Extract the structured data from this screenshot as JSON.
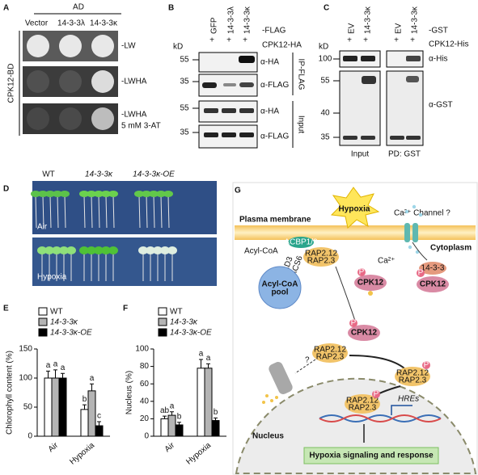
{
  "panels": {
    "A": {
      "label": "A",
      "header": "AD",
      "columns": [
        "Vector",
        "14-3-3λ",
        "14-3-3κ"
      ],
      "row_axis": "CPK12-BD",
      "rows": [
        "-LW",
        "-LWHA",
        "-LWHA"
      ],
      "row_note": "5 mM 3-AT"
    },
    "B": {
      "label": "B",
      "kd": "kD",
      "plus": "+",
      "columns": [
        "GFP",
        "14-3-3λ",
        "14-3-3κ"
      ],
      "conditions": [
        "-FLAG",
        "CPK12-HA"
      ],
      "markers": [
        55,
        35,
        55,
        35
      ],
      "antibodies": [
        "α-HA",
        "α-FLAG",
        "α-HA",
        "α-FLAG"
      ],
      "sections": [
        "IP-FLAG",
        "Input"
      ]
    },
    "C": {
      "label": "C",
      "kd": "kD",
      "plus": "+",
      "columns": [
        "EV",
        "14-3-3κ",
        "EV",
        "14-3-3κ"
      ],
      "conditions": [
        "-GST",
        "CPK12-His"
      ],
      "markers": [
        100,
        55,
        40,
        35
      ],
      "antibodies": [
        "α-His",
        "α-GST"
      ],
      "sections": [
        "Input",
        "PD: GST"
      ]
    },
    "D": {
      "label": "D",
      "genotypes": [
        "WT",
        "14-3-3κ",
        "14-3-3κ-OE"
      ],
      "conditions": [
        "Air",
        "Hypoxia"
      ]
    },
    "G": {
      "label": "G",
      "hypoxia": "Hypoxia",
      "plasma_membrane": "Plasma membrane",
      "ca_channel": "Ca²⁺ Channel ?",
      "cytoplasm": "Cytoplasm",
      "acyl_coa": "Acyl-CoA",
      "acbp": "ACBP1/2",
      "fad3": "FAD3",
      "lacs6": "LACS6",
      "rap": [
        "RAP2.12",
        "RAP2.3"
      ],
      "pool": [
        "Acyl-CoA",
        "pool"
      ],
      "ca": "Ca²⁺",
      "cpk12": "CPK12",
      "fourteen": "14-3-3",
      "phospho": "P",
      "question": "?",
      "nucleus": "Nucleus",
      "hres": "HREs",
      "response": "Hypoxia signaling and response"
    }
  },
  "chart_data": [
    {
      "type": "bar",
      "label": "E",
      "ylabel": "Chlorophyll content (%)",
      "categories": [
        "Air",
        "Hypoxia"
      ],
      "series": [
        {
          "name": "WT",
          "color": "#ffffff",
          "values": [
            100,
            46
          ],
          "errors": [
            12,
            8
          ],
          "letters": [
            "a",
            "b"
          ]
        },
        {
          "name": "14-3-3κ",
          "color": "#b4b4b4",
          "values": [
            100,
            78
          ],
          "errors": [
            14,
            12
          ],
          "letters": [
            "a",
            "a"
          ]
        },
        {
          "name": "14-3-3κ-OE",
          "color": "#000000",
          "values": [
            100,
            18
          ],
          "errors": [
            8,
            7
          ],
          "letters": [
            "a",
            "c"
          ]
        }
      ],
      "ylim": [
        0,
        150
      ],
      "yticks": [
        0,
        50,
        100,
        150
      ]
    },
    {
      "type": "bar",
      "label": "F",
      "ylabel": "Nucleus (%)",
      "categories": [
        "Air",
        "Hypoxia"
      ],
      "series": [
        {
          "name": "WT",
          "color": "#ffffff",
          "values": [
            20,
            78
          ],
          "errors": [
            3,
            10
          ],
          "letters": [
            "ab",
            "a"
          ]
        },
        {
          "name": "14-3-3κ",
          "color": "#b4b4b4",
          "values": [
            24,
            78
          ],
          "errors": [
            4,
            5
          ],
          "letters": [
            "a",
            "a"
          ]
        },
        {
          "name": "14-3-3κ-OE",
          "color": "#000000",
          "values": [
            13,
            18
          ],
          "errors": [
            3,
            3
          ],
          "letters": [
            "b",
            "b"
          ]
        }
      ],
      "ylim": [
        0,
        100
      ],
      "yticks": [
        0,
        20,
        40,
        60,
        80,
        100
      ]
    }
  ]
}
